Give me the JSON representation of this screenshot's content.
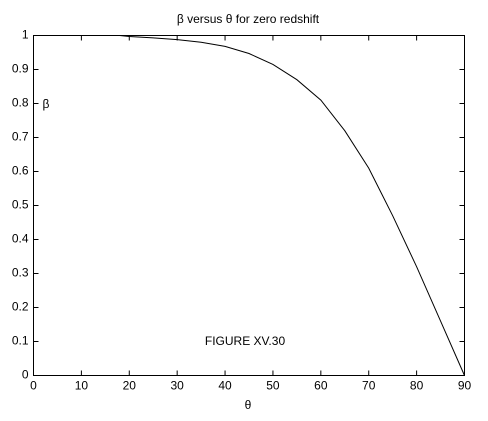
{
  "chart_data": {
    "type": "line",
    "title": "β versus θ for zero redshift",
    "x_label": "θ",
    "y_label": "β",
    "annotation": "FIGURE XV.30",
    "series": [
      {
        "color": "#000000",
        "x": [
          18,
          20,
          25,
          30,
          35,
          40,
          45,
          50,
          55,
          60,
          65,
          70,
          75,
          80,
          85,
          90
        ],
        "values": [
          1,
          0.997,
          0.993,
          0.988,
          0.98,
          0.968,
          0.947,
          0.915,
          0.87,
          0.81,
          0.72,
          0.61,
          0.47,
          0.32,
          0.16,
          0
        ]
      }
    ],
    "xlim": [
      0,
      90
    ],
    "xticks": [
      0,
      10,
      20,
      30,
      40,
      50,
      60,
      70,
      80,
      90
    ],
    "ylim": [
      0,
      1
    ],
    "yticks": [
      0,
      0.1,
      0.2,
      0.3,
      0.4,
      0.5,
      0.6,
      0.7,
      0.8,
      0.9,
      1
    ],
    "grid": false
  }
}
